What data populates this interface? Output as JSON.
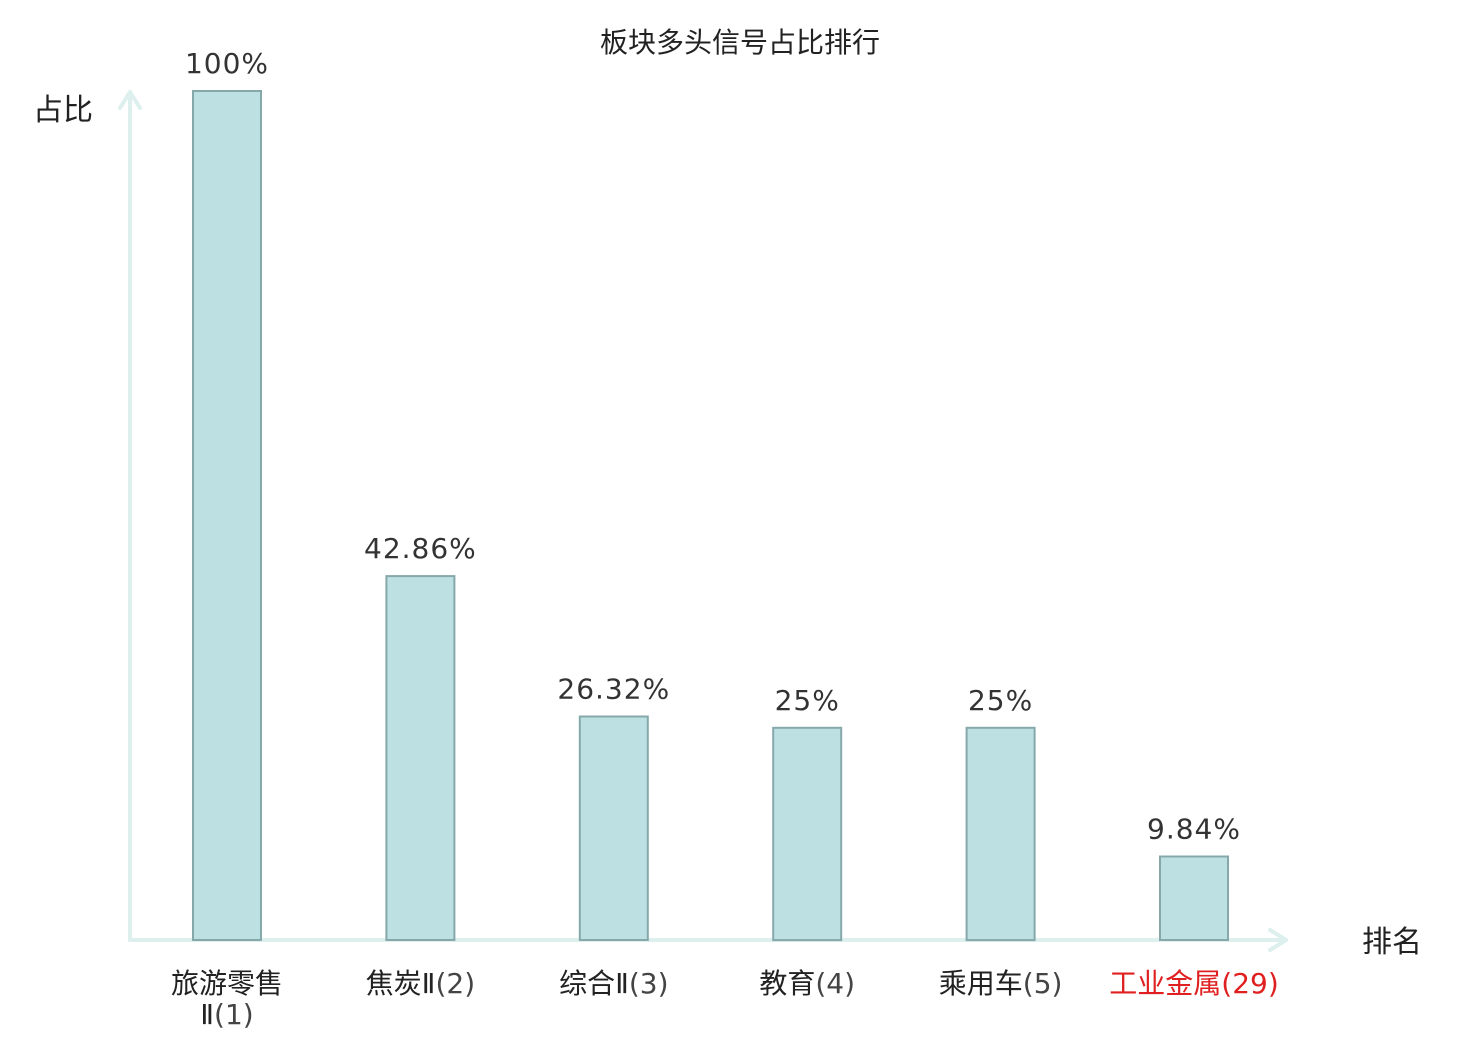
{
  "chart_data": {
    "type": "bar",
    "title": "板块多头信号占比排行",
    "ylabel": "占比",
    "xlabel": "排名",
    "ylim": [
      0,
      100
    ],
    "grid": false,
    "legend": "none",
    "categories": [
      {
        "name": "旅游零售Ⅱ",
        "rank": "(1)",
        "highlight": false
      },
      {
        "name": "焦炭Ⅱ",
        "rank": "(2)",
        "highlight": false
      },
      {
        "name": "综合Ⅱ",
        "rank": "(3)",
        "highlight": false
      },
      {
        "name": "教育",
        "rank": "(4)",
        "highlight": false
      },
      {
        "name": "乘用车",
        "rank": "(5)",
        "highlight": false
      },
      {
        "name": "工业金属",
        "rank": "(29)",
        "highlight": true
      }
    ],
    "values": [
      100,
      42.86,
      26.32,
      25,
      25,
      9.84
    ],
    "value_labels": [
      "100%",
      "42.86%",
      "26.32%",
      "25%",
      "25%",
      "9.84%"
    ],
    "colors": {
      "bar_fill": "#bde0e3",
      "bar_stroke": "#86a8ab",
      "axis": "#ddf0ee",
      "highlight_text": "#e02020"
    }
  }
}
